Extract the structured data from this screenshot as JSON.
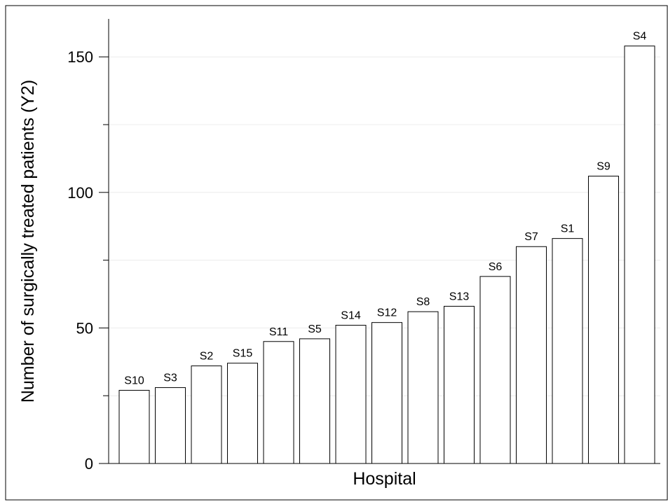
{
  "chart_data": {
    "type": "bar",
    "categories": [
      "S10",
      "S3",
      "S2",
      "S15",
      "S11",
      "S5",
      "S14",
      "S12",
      "S8",
      "S13",
      "S6",
      "S7",
      "S1",
      "S9",
      "S4"
    ],
    "values": [
      27,
      28,
      36,
      37,
      45,
      46,
      51,
      52,
      56,
      58,
      69,
      80,
      83,
      106,
      154
    ],
    "title": "",
    "xlabel": "Hospital",
    "ylabel": "Number of surgically treated patients (Y2)",
    "ylim": [
      0,
      164
    ],
    "yticks_major": [
      0,
      50,
      100,
      150
    ],
    "yticks_minor": [
      25,
      75,
      125
    ],
    "bar_fill": "#ffffff",
    "bar_stroke": "#000000",
    "grid": "horizontal, faint",
    "legend": "none"
  }
}
